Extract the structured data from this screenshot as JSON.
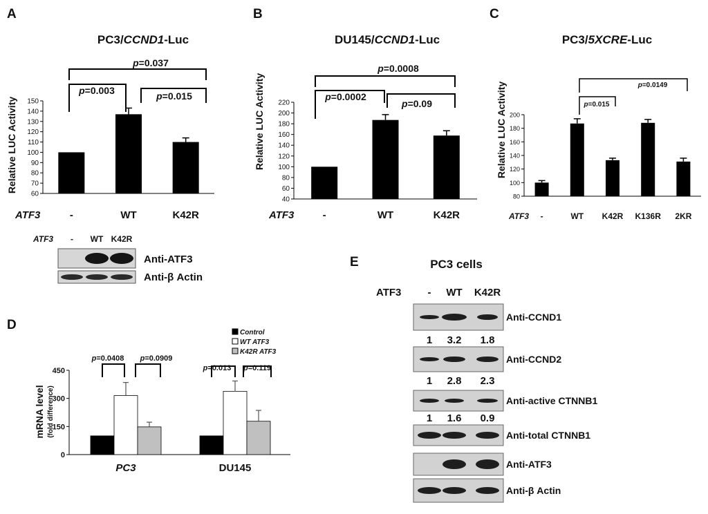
{
  "panels": {
    "A": {
      "letter": "A",
      "title_a": "PC3/",
      "title_b": "CCND1",
      "title_c": "-Luc",
      "ylabel": "Relative LUC Activity",
      "atf3_label": "ATF3",
      "sig": [
        {
          "p": "p",
          "v": "=0.003"
        },
        {
          "p": "p",
          "v": "=0.015"
        },
        {
          "p": "p",
          "v": "=0.037"
        }
      ],
      "wb": {
        "atf3": "ATF3",
        "lanes": [
          "-",
          "WT",
          "K42R"
        ],
        "rows": [
          "Anti-ATF3",
          "Anti-β Actin"
        ]
      }
    },
    "B": {
      "letter": "B",
      "title_a": "DU145/",
      "title_b": "CCND1",
      "title_c": "-Luc",
      "ylabel": "Relative LUC Activity",
      "atf3_label": "ATF3",
      "sig": [
        {
          "p": "p",
          "v": "=0.0002"
        },
        {
          "p": "p",
          "v": "=0.09"
        },
        {
          "p": "p",
          "v": "=0.0008"
        }
      ]
    },
    "C": {
      "letter": "C",
      "title_a": "PC3/",
      "title_b": "5XCRE",
      "title_c": "-Luc",
      "ylabel": "Relative  LUC Activity",
      "atf3_label": "ATF3",
      "sig": [
        {
          "p": "p",
          "v": "=0.015"
        },
        {
          "p": "p",
          "v": "=0.0149"
        }
      ]
    },
    "D": {
      "letter": "D",
      "ylabel1": "mRNA  level",
      "ylabel2": "(fold difference)",
      "legend": [
        "Control",
        "WT ATF3",
        "K42R ATF3"
      ],
      "sig": [
        {
          "p": "p",
          "v": "=0.0408"
        },
        {
          "p": "p",
          "v": "=0.0909"
        },
        {
          "p": "p",
          "v": "=0.013"
        },
        {
          "p": "p",
          "v": "=0.119"
        }
      ]
    },
    "E": {
      "letter": "E",
      "title": "PC3 cells",
      "atf3": "ATF3",
      "lanes": [
        "-",
        "WT",
        "K42R"
      ],
      "rows": [
        "Anti-CCND1",
        "Anti-CCND2",
        "Anti-active CTNNB1",
        "Anti-total CTNNB1",
        "Anti-ATF3",
        "Anti-β Actin"
      ],
      "quant": [
        [
          "1",
          "3.2",
          "1.8"
        ],
        [
          "1",
          "2.8",
          "2.3"
        ],
        [
          "1",
          "1.6",
          "0.9"
        ]
      ]
    }
  },
  "chart_data": [
    {
      "panel": "A",
      "type": "bar",
      "title": "PC3/CCND1-Luc",
      "ylabel": "Relative LUC Activity",
      "xlabel": "ATF3",
      "categories": [
        "-",
        "WT",
        "K42R"
      ],
      "values": [
        100,
        137,
        110
      ],
      "errors": [
        0,
        6,
        4
      ],
      "ylim": [
        60,
        150
      ],
      "yticks": [
        60,
        70,
        80,
        90,
        100,
        110,
        120,
        130,
        140,
        150
      ]
    },
    {
      "panel": "B",
      "type": "bar",
      "title": "DU145/CCND1-Luc",
      "ylabel": "Relative LUC Activity",
      "xlabel": "ATF3",
      "categories": [
        "-",
        "WT",
        "K42R"
      ],
      "values": [
        100,
        187,
        158
      ],
      "errors": [
        0,
        10,
        9
      ],
      "ylim": [
        40,
        220
      ],
      "yticks": [
        40,
        60,
        80,
        100,
        120,
        140,
        160,
        180,
        200,
        220
      ]
    },
    {
      "panel": "C",
      "type": "bar",
      "title": "PC3/5XCRE-Luc",
      "ylabel": "Relative  LUC Activity",
      "xlabel": "ATF3",
      "categories": [
        "-",
        "WT",
        "K42R",
        "K136R",
        "2KR"
      ],
      "values": [
        100,
        187,
        133,
        188,
        131
      ],
      "errors": [
        3,
        7,
        3,
        5,
        5
      ],
      "ylim": [
        80,
        200
      ],
      "yticks": [
        80,
        100,
        120,
        140,
        160,
        180,
        200
      ]
    },
    {
      "panel": "D",
      "type": "bar",
      "ylabel": "mRNA  level (fold difference)",
      "categories": [
        "PC3",
        "DU145"
      ],
      "ylim": [
        0,
        450
      ],
      "yticks": [
        0,
        150,
        300,
        450
      ],
      "series": [
        {
          "name": "Control",
          "color": "#000000",
          "values": [
            100,
            100
          ],
          "errors": [
            0,
            0
          ]
        },
        {
          "name": "WT ATF3",
          "color": "#ffffff",
          "values": [
            315,
            338
          ],
          "errors": [
            70,
            55
          ]
        },
        {
          "name": "K42R ATF3",
          "color": "#c0c0c0",
          "values": [
            148,
            178
          ],
          "errors": [
            25,
            58
          ]
        }
      ]
    }
  ]
}
